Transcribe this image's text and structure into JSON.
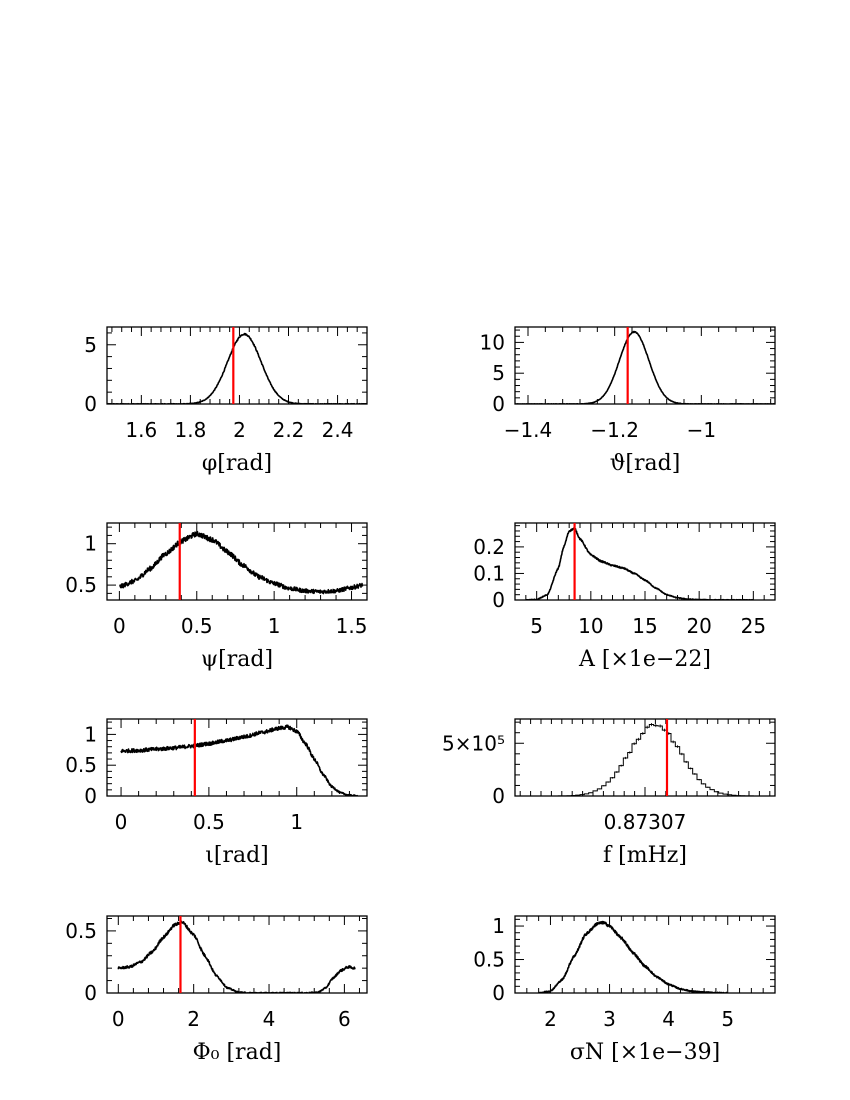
{
  "chart_data": [
    {
      "type": "line",
      "panel": "phi",
      "xlabel": "φ[rad]",
      "xlim": [
        1.46,
        2.52
      ],
      "ylim": [
        0,
        6.5
      ],
      "xticks": [
        1.6,
        1.8,
        2.0,
        2.2,
        2.4
      ],
      "xtick_labels": [
        "1.6",
        "1.8",
        "2",
        "2.2",
        "2.4"
      ],
      "yticks": [
        0,
        5
      ],
      "ytick_labels": [
        "0",
        "5"
      ],
      "curve": {
        "kind": "gauss",
        "mu": 2.02,
        "sigma": 0.068,
        "peak": 5.9
      },
      "true_value": 1.975,
      "noise": 0.06
    },
    {
      "type": "line",
      "panel": "theta",
      "xlabel": "ϑ[rad]",
      "xlim": [
        -1.43,
        -0.83
      ],
      "ylim": [
        0,
        12.5
      ],
      "xticks": [
        -1.4,
        -1.2,
        -1.0
      ],
      "xtick_labels": [
        "−1.4",
        "−1.2",
        "−1"
      ],
      "yticks": [
        0,
        5,
        10
      ],
      "ytick_labels": [
        "0",
        "5",
        "10"
      ],
      "curve": {
        "kind": "gauss",
        "mu": -1.155,
        "sigma": 0.034,
        "peak": 11.7
      },
      "true_value": -1.17,
      "noise": 0.08
    },
    {
      "type": "line",
      "panel": "psi",
      "xlabel": "ψ[rad]",
      "xlim": [
        -0.08,
        1.6
      ],
      "ylim": [
        0.32,
        1.25
      ],
      "xticks": [
        0,
        0.5,
        1.0,
        1.5
      ],
      "xtick_labels": [
        "0",
        "0.5",
        "1",
        "1.5"
      ],
      "yticks": [
        0.5,
        1.0
      ],
      "ytick_labels": [
        "0.5",
        "1"
      ],
      "curve": {
        "kind": "points",
        "x": [
          0,
          0.1,
          0.2,
          0.3,
          0.4,
          0.5,
          0.6,
          0.7,
          0.8,
          0.9,
          1.0,
          1.1,
          1.2,
          1.3,
          1.4,
          1.5,
          1.57
        ],
        "y": [
          0.48,
          0.55,
          0.7,
          0.88,
          1.03,
          1.12,
          1.05,
          0.9,
          0.74,
          0.6,
          0.52,
          0.46,
          0.43,
          0.42,
          0.43,
          0.47,
          0.5
        ]
      },
      "true_value": 0.39,
      "noise": 0.03
    },
    {
      "type": "line",
      "panel": "amplitude",
      "xlabel": "A [×1e−22]",
      "xlim": [
        3.0,
        27.0
      ],
      "ylim": [
        0,
        0.29
      ],
      "xticks": [
        5,
        10,
        15,
        20,
        25
      ],
      "xtick_labels": [
        "5",
        "10",
        "15",
        "20",
        "25"
      ],
      "yticks": [
        0,
        0.1,
        0.2
      ],
      "ytick_labels": [
        "0",
        "0.1",
        "0.2"
      ],
      "curve": {
        "kind": "points",
        "x": [
          4,
          5,
          6,
          7,
          7.5,
          8,
          8.5,
          9,
          10,
          11,
          12,
          13,
          14,
          15,
          16,
          17,
          18,
          19,
          20,
          22,
          25
        ],
        "y": [
          0,
          0.002,
          0.02,
          0.12,
          0.2,
          0.26,
          0.27,
          0.23,
          0.17,
          0.145,
          0.13,
          0.12,
          0.1,
          0.075,
          0.045,
          0.02,
          0.008,
          0.003,
          0.001,
          0,
          0
        ]
      },
      "true_value": 8.5,
      "noise": 0.003
    },
    {
      "type": "line",
      "panel": "iota",
      "xlabel": "ι[rad]",
      "xlim": [
        -0.08,
        1.4
      ],
      "ylim": [
        0,
        1.25
      ],
      "xticks": [
        0,
        0.5,
        1.0
      ],
      "xtick_labels": [
        "0",
        "0.5",
        "1"
      ],
      "yticks": [
        0,
        0.5,
        1.0
      ],
      "ytick_labels": [
        "0",
        "0.5",
        "1"
      ],
      "curve": {
        "kind": "points",
        "x": [
          0,
          0.1,
          0.2,
          0.3,
          0.4,
          0.5,
          0.6,
          0.7,
          0.8,
          0.9,
          0.95,
          1.0,
          1.05,
          1.1,
          1.15,
          1.2,
          1.25,
          1.3,
          1.35
        ],
        "y": [
          0.73,
          0.74,
          0.76,
          0.78,
          0.81,
          0.85,
          0.9,
          0.96,
          1.03,
          1.1,
          1.12,
          1.05,
          0.85,
          0.6,
          0.35,
          0.15,
          0.05,
          0.01,
          0
        ]
      },
      "true_value": 0.42,
      "noise": 0.03
    },
    {
      "type": "bar",
      "panel": "frequency",
      "xlabel": "f [mHz]",
      "xlim": [
        -13,
        13
      ],
      "ylim": [
        0,
        730000
      ],
      "xticks": [
        0
      ],
      "xtick_labels": [
        "0.87307"
      ],
      "yticks": [
        0,
        500000
      ],
      "ytick_labels": [
        "0",
        "5×10⁵"
      ],
      "curve": {
        "kind": "hist",
        "mu": 1.0,
        "sigma": 2.6,
        "peak": 670000,
        "bins": 60
      },
      "true_value": 2.2,
      "noise": 0
    },
    {
      "type": "line",
      "panel": "phase",
      "xlabel": "Φ₀ [rad]",
      "xlim": [
        -0.3,
        6.6
      ],
      "ylim": [
        0,
        0.62
      ],
      "xticks": [
        0,
        2,
        4,
        6
      ],
      "xtick_labels": [
        "0",
        "2",
        "4",
        "6"
      ],
      "yticks": [
        0,
        0.5
      ],
      "ytick_labels": [
        "0",
        "0.5"
      ],
      "curve": {
        "kind": "points",
        "x": [
          0,
          0.3,
          0.6,
          0.9,
          1.2,
          1.5,
          1.7,
          2.0,
          2.3,
          2.6,
          2.9,
          3.2,
          3.5,
          4.0,
          4.5,
          5.0,
          5.3,
          5.5,
          5.7,
          5.9,
          6.1,
          6.28
        ],
        "y": [
          0.2,
          0.21,
          0.25,
          0.33,
          0.45,
          0.55,
          0.57,
          0.47,
          0.3,
          0.14,
          0.04,
          0.005,
          0,
          0,
          0,
          0,
          0.005,
          0.04,
          0.12,
          0.18,
          0.21,
          0.2
        ]
      },
      "true_value": 1.65,
      "noise": 0.012
    },
    {
      "type": "line",
      "panel": "sigma",
      "xlabel": "σN [×1e−39]",
      "xlim": [
        1.4,
        5.8
      ],
      "ylim": [
        0,
        1.15
      ],
      "xticks": [
        2,
        3,
        4,
        5
      ],
      "xtick_labels": [
        "2",
        "3",
        "4",
        "5"
      ],
      "yticks": [
        0,
        0.5,
        1.0
      ],
      "ytick_labels": [
        "0",
        "0.5",
        "1"
      ],
      "curve": {
        "kind": "points",
        "x": [
          1.8,
          2.0,
          2.2,
          2.4,
          2.6,
          2.8,
          2.9,
          3.0,
          3.2,
          3.4,
          3.6,
          3.8,
          4.0,
          4.2,
          4.4,
          4.6,
          4.8,
          5.0
        ],
        "y": [
          0,
          0.03,
          0.2,
          0.55,
          0.88,
          1.04,
          1.05,
          1.0,
          0.82,
          0.6,
          0.4,
          0.24,
          0.13,
          0.06,
          0.025,
          0.01,
          0.003,
          0
        ]
      },
      "true_value": null,
      "noise": 0.02
    }
  ]
}
